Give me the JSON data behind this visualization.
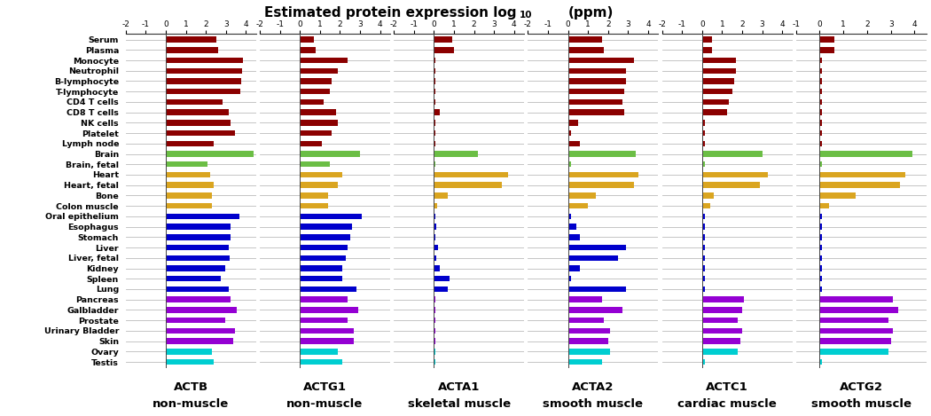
{
  "title": "Estimated protein expression log$_{10}$ (ppm)",
  "tissue_labels": [
    "Serum",
    "Plasma",
    "Monocyte",
    "Neutrophil",
    "B-lymphocyte",
    "T-lymphocyte",
    "CD4 T cells",
    "CD8 T cells",
    "NK cells",
    "Platelet",
    "Lymph node",
    "Brain",
    "Brain, fetal",
    "Heart",
    "Heart, fetal",
    "Bone",
    "Colon muscle",
    "Oral epithelium",
    "Esophagus",
    "Stomach",
    "Liver",
    "Liver, fetal",
    "Kidney",
    "Spleen",
    "Lung",
    "Pancreas",
    "Galbladder",
    "Prostate",
    "Urinary Bladder",
    "Skin",
    "Ovary",
    "Testis"
  ],
  "tissue_colors": [
    "#8B0000",
    "#8B0000",
    "#8B0000",
    "#8B0000",
    "#8B0000",
    "#8B0000",
    "#8B0000",
    "#8B0000",
    "#8B0000",
    "#8B0000",
    "#8B0000",
    "#6BBE45",
    "#6BBE45",
    "#DAA520",
    "#DAA520",
    "#DAA520",
    "#DAA520",
    "#0000CC",
    "#0000CC",
    "#0000CC",
    "#0000CC",
    "#0000CC",
    "#0000CC",
    "#0000CC",
    "#0000CC",
    "#9400D3",
    "#9400D3",
    "#9400D3",
    "#9400D3",
    "#9400D3",
    "#00CED1",
    "#00CED1"
  ],
  "panels": [
    {
      "label": "ACTB",
      "sublabel": "non-muscle",
      "xlim": [
        -2,
        4.5
      ],
      "xticks": [
        -2,
        -1,
        0,
        1,
        2,
        3,
        4
      ],
      "values": [
        2.5,
        2.6,
        3.85,
        3.8,
        3.75,
        3.7,
        2.85,
        3.15,
        3.25,
        3.45,
        2.4,
        4.4,
        2.1,
        2.2,
        2.4,
        2.3,
        2.3,
        3.65,
        3.25,
        3.25,
        3.15,
        3.2,
        2.95,
        2.75,
        3.15,
        3.25,
        3.55,
        2.95,
        3.45,
        3.35,
        2.3,
        2.4
      ]
    },
    {
      "label": "ACTG1",
      "sublabel": "non-muscle",
      "xlim": [
        -2,
        4.5
      ],
      "xticks": [
        -2,
        -1,
        0,
        1,
        2,
        3,
        4
      ],
      "values": [
        0.7,
        0.8,
        2.4,
        1.9,
        1.6,
        1.5,
        1.2,
        1.8,
        1.9,
        1.6,
        1.1,
        3.0,
        1.5,
        2.1,
        1.9,
        1.4,
        1.4,
        3.1,
        2.6,
        2.5,
        2.4,
        2.3,
        2.1,
        2.1,
        2.8,
        2.4,
        2.9,
        2.4,
        2.7,
        2.7,
        1.9,
        2.1
      ]
    },
    {
      "label": "ACTA1",
      "sublabel": "skeletal muscle",
      "xlim": [
        -2,
        4.5
      ],
      "xticks": [
        -2,
        -1,
        0,
        1,
        2,
        3,
        4
      ],
      "values": [
        0.9,
        1.0,
        0.05,
        0.05,
        0.05,
        0.05,
        0.05,
        0.3,
        0.05,
        0.05,
        0.05,
        2.2,
        0.05,
        3.7,
        3.4,
        0.7,
        0.15,
        0.05,
        0.1,
        0.05,
        0.2,
        0.1,
        0.3,
        0.8,
        0.7,
        0.05,
        0.05,
        0.05,
        0.05,
        0.05,
        0.05,
        0.05
      ]
    },
    {
      "label": "ACTA2",
      "sublabel": "smooth muscle",
      "xlim": [
        -2,
        4.5
      ],
      "xticks": [
        -2,
        -1,
        0,
        1,
        2,
        3,
        4
      ],
      "values": [
        1.7,
        1.8,
        3.3,
        2.9,
        2.9,
        2.8,
        2.7,
        2.8,
        0.5,
        0.15,
        0.6,
        3.4,
        0.15,
        3.5,
        3.3,
        1.4,
        1.0,
        0.15,
        0.4,
        0.6,
        2.9,
        2.5,
        0.6,
        0.15,
        2.9,
        1.7,
        2.7,
        1.8,
        2.1,
        2.0,
        2.1,
        1.7
      ]
    },
    {
      "label": "ACTC1",
      "sublabel": "cardiac muscle",
      "xlim": [
        -2,
        4.5
      ],
      "xticks": [
        -2,
        -1,
        0,
        1,
        2,
        3,
        4
      ],
      "values": [
        0.5,
        0.5,
        1.7,
        1.7,
        1.6,
        1.5,
        1.35,
        1.25,
        0.15,
        0.15,
        0.15,
        3.0,
        0.15,
        3.3,
        2.9,
        0.6,
        0.4,
        0.15,
        0.15,
        0.15,
        0.15,
        0.15,
        0.15,
        0.15,
        0.15,
        2.1,
        2.0,
        1.8,
        2.0,
        1.9,
        1.8,
        0.15
      ]
    },
    {
      "label": "ACTG2",
      "sublabel": "smooth muscle",
      "xlim": [
        -1,
        4.5
      ],
      "xticks": [
        -1,
        0,
        1,
        2,
        3,
        4
      ],
      "values": [
        0.6,
        0.6,
        0.1,
        0.1,
        0.1,
        0.1,
        0.1,
        0.1,
        0.1,
        0.1,
        0.1,
        3.9,
        0.1,
        3.6,
        3.4,
        1.5,
        0.4,
        0.1,
        0.1,
        0.1,
        0.1,
        0.1,
        0.1,
        0.1,
        0.1,
        3.1,
        3.3,
        2.9,
        3.1,
        3.0,
        2.9,
        0.1
      ]
    }
  ],
  "background_color": "#FFFFFF",
  "bar_height": 0.55,
  "line_color": "#BBBBBB"
}
